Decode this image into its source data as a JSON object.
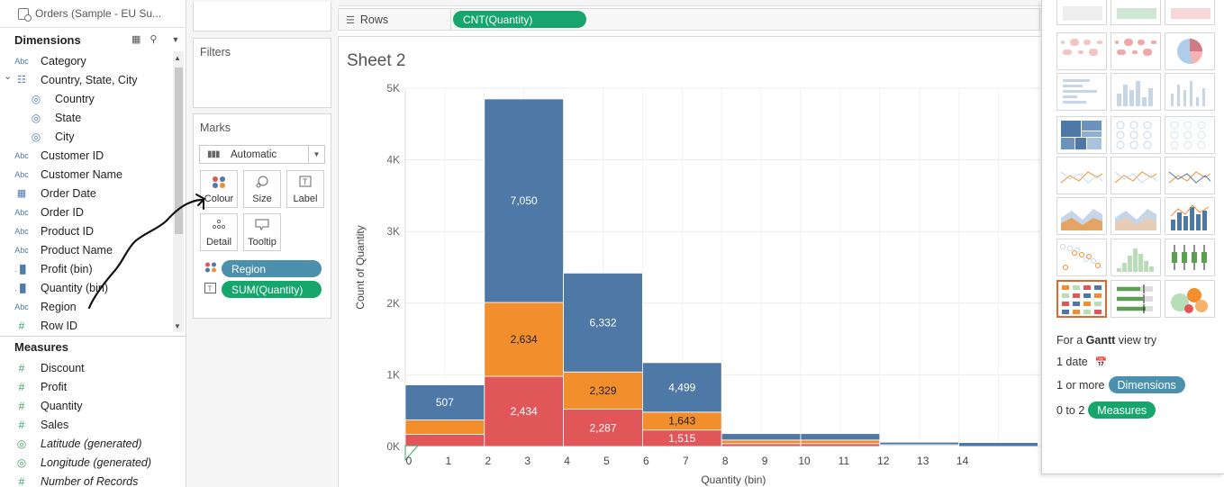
{
  "datasource": {
    "name": "Orders (Sample - EU Su..."
  },
  "dimensions": {
    "header": "Dimensions",
    "items": [
      {
        "icon": "Abc",
        "label": "Category"
      },
      {
        "icon": "hierarchy",
        "label": "Country, State, City"
      },
      {
        "icon": "globe",
        "label": "Country"
      },
      {
        "icon": "globe",
        "label": "State"
      },
      {
        "icon": "globe",
        "label": "City"
      },
      {
        "icon": "Abc",
        "label": "Customer ID"
      },
      {
        "icon": "Abc",
        "label": "Customer Name"
      },
      {
        "icon": "calendar",
        "label": "Order Date"
      },
      {
        "icon": "Abc",
        "label": "Order ID"
      },
      {
        "icon": "Abc",
        "label": "Product ID"
      },
      {
        "icon": "Abc",
        "label": "Product Name"
      },
      {
        "icon": "bins",
        "label": "Profit (bin)"
      },
      {
        "icon": "bins",
        "label": "Quantity (bin)"
      },
      {
        "icon": "Abc",
        "label": "Region"
      },
      {
        "icon": "#",
        "label": "Row ID"
      }
    ]
  },
  "measures": {
    "header": "Measures",
    "items": [
      {
        "icon": "#",
        "label": "Discount"
      },
      {
        "icon": "#",
        "label": "Profit"
      },
      {
        "icon": "#",
        "label": "Quantity"
      },
      {
        "icon": "#",
        "label": "Sales"
      },
      {
        "icon": "globe",
        "label": "Latitude (generated)"
      },
      {
        "icon": "globe",
        "label": "Longitude (generated)"
      },
      {
        "icon": "#",
        "label": "Number of Records"
      }
    ]
  },
  "filters": {
    "title": "Filters"
  },
  "marks": {
    "title": "Marks",
    "mark_type": "Automatic",
    "buttons": {
      "colour": "Colour",
      "size": "Size",
      "label": "Label",
      "detail": "Detail",
      "tooltip": "Tooltip"
    },
    "pills": {
      "colour": "Region",
      "label": "SUM(Quantity)"
    }
  },
  "shelves": {
    "rows_label": "Rows",
    "rows_pill": "CNT(Quantity)"
  },
  "sheet": {
    "title": "Sheet 2"
  },
  "colors": {
    "blue": "#4e79a7",
    "orange": "#f28e2b",
    "red": "#e15759",
    "dimension_pill": "#4b91ad",
    "measure_pill": "#16a66c"
  },
  "chart_data": {
    "type": "bar",
    "stacked": true,
    "xlabel": "Quantity (bin)",
    "ylabel": "Count of Quantity",
    "ylim": [
      0,
      5000
    ],
    "yticks": [
      "0K",
      "1K",
      "2K",
      "3K",
      "4K",
      "5K"
    ],
    "xticks": [
      "0",
      "1",
      "2",
      "3",
      "4",
      "5",
      "6",
      "7",
      "8",
      "9",
      "10",
      "11",
      "12",
      "13",
      "14"
    ],
    "bin_width": 2,
    "bins": [
      0,
      2,
      4,
      6,
      8,
      10,
      12,
      14
    ],
    "series": [
      {
        "color": "#e15759",
        "values": [
          170,
          980,
          520,
          230,
          40,
          40,
          10,
          0
        ],
        "labels": [
          "",
          "2,434",
          "2,287",
          "1,515",
          "",
          "",
          "",
          ""
        ]
      },
      {
        "color": "#f28e2b",
        "values": [
          200,
          1030,
          520,
          250,
          50,
          50,
          15,
          0
        ],
        "labels": [
          "",
          "2,634",
          "2,329",
          "1,643",
          "",
          "",
          "",
          ""
        ]
      },
      {
        "color": "#4e79a7",
        "values": [
          490,
          2840,
          1380,
          690,
          90,
          90,
          35,
          55
        ],
        "labels": [
          "507",
          "7,050",
          "6,332",
          "4,499",
          "",
          "",
          "",
          ""
        ]
      }
    ]
  },
  "showme": {
    "hint_prefix": "For a",
    "hint_chart": "Gantt",
    "hint_suffix": "view try",
    "req_date": "1 date",
    "req_dims_prefix": "1 or more",
    "req_dims_pill": "Dimensions",
    "req_meas_prefix": "0 to 2",
    "req_meas_pill": "Measures"
  }
}
